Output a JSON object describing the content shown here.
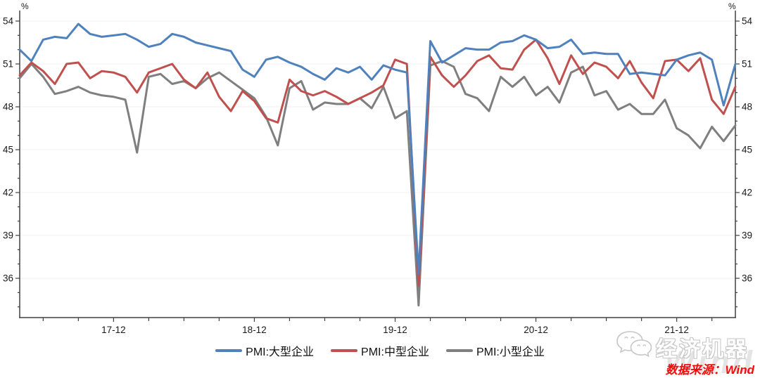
{
  "page": {
    "background": "#ffffff"
  },
  "chart_data": {
    "type": "line",
    "title": "",
    "y_unit": "%",
    "ylim": [
      33.25,
      54.75
    ],
    "yticks": [
      36,
      39,
      42,
      45,
      48,
      51,
      54
    ],
    "grid": "horizontal-faint",
    "legend_position": "bottom-center",
    "axis_color": "#404040",
    "grid_color": "#f0f0f0",
    "tick_label_color": "#1a1a1a",
    "x": [
      "17-04",
      "17-05",
      "17-06",
      "17-07",
      "17-08",
      "17-09",
      "17-10",
      "17-11",
      "17-12",
      "18-01",
      "18-02",
      "18-03",
      "18-04",
      "18-05",
      "18-06",
      "18-07",
      "18-08",
      "18-09",
      "18-10",
      "18-11",
      "18-12",
      "19-01",
      "19-02",
      "19-03",
      "19-04",
      "19-05",
      "19-06",
      "19-07",
      "19-08",
      "19-09",
      "19-10",
      "19-11",
      "19-12",
      "20-01",
      "20-02",
      "20-03",
      "20-04",
      "20-05",
      "20-06",
      "20-07",
      "20-08",
      "20-09",
      "20-10",
      "20-11",
      "20-12",
      "21-01",
      "21-02",
      "21-03",
      "21-04",
      "21-05",
      "21-06",
      "21-07",
      "21-08",
      "21-09",
      "21-10",
      "21-11",
      "21-12",
      "22-01",
      "22-02",
      "22-03",
      "22-04",
      "22-05"
    ],
    "xticks": [
      {
        "index": 8,
        "label": "17-12"
      },
      {
        "index": 20,
        "label": "18-12"
      },
      {
        "index": 32,
        "label": "19-12"
      },
      {
        "index": 44,
        "label": "20-12"
      },
      {
        "index": 56,
        "label": "21-12"
      }
    ],
    "minor_xtick_every_months": 3,
    "series": [
      {
        "name": "PMI:大型企业",
        "color": "#4f81bd",
        "values": [
          52.0,
          51.2,
          52.7,
          52.9,
          52.8,
          53.8,
          53.1,
          52.9,
          53.0,
          53.1,
          52.7,
          52.2,
          52.4,
          53.1,
          52.9,
          52.5,
          52.3,
          52.1,
          51.9,
          50.6,
          50.1,
          51.3,
          51.5,
          51.1,
          50.8,
          50.3,
          49.9,
          50.7,
          50.4,
          50.8,
          49.9,
          50.9,
          50.6,
          50.4,
          36.3,
          52.6,
          51.1,
          51.6,
          52.1,
          52.0,
          52.0,
          52.5,
          52.6,
          53.0,
          52.7,
          52.1,
          52.2,
          52.7,
          51.7,
          51.8,
          51.7,
          51.7,
          50.3,
          50.4,
          50.3,
          50.2,
          51.3,
          51.6,
          51.8,
          51.3,
          48.1,
          51.0
        ]
      },
      {
        "name": "PMI:中型企业",
        "color": "#c0504d",
        "values": [
          50.2,
          51.1,
          50.5,
          49.6,
          51.0,
          51.1,
          50.0,
          50.5,
          50.4,
          50.1,
          49.0,
          50.4,
          50.7,
          51.0,
          49.9,
          49.3,
          50.4,
          48.7,
          47.7,
          49.1,
          48.4,
          47.2,
          46.9,
          49.9,
          49.1,
          48.8,
          49.1,
          48.7,
          48.2,
          48.6,
          49.0,
          49.5,
          51.3,
          51.0,
          35.5,
          51.5,
          50.2,
          49.4,
          50.2,
          51.2,
          51.6,
          50.7,
          50.6,
          52.0,
          52.7,
          51.4,
          49.6,
          51.6,
          50.3,
          51.1,
          50.8,
          50.0,
          51.2,
          49.7,
          48.6,
          51.2,
          51.3,
          50.5,
          51.4,
          48.5,
          47.5,
          49.4
        ]
      },
      {
        "name": "PMI:小型企业",
        "color": "#7f7f7f",
        "values": [
          50.0,
          51.0,
          50.1,
          48.9,
          49.1,
          49.4,
          49.0,
          48.8,
          48.7,
          48.5,
          44.8,
          50.1,
          50.3,
          49.6,
          49.8,
          49.3,
          50.0,
          50.4,
          49.8,
          49.2,
          48.6,
          47.3,
          45.3,
          49.3,
          49.8,
          47.8,
          48.3,
          48.2,
          48.2,
          48.6,
          47.9,
          49.4,
          47.2,
          47.7,
          34.1,
          50.9,
          51.2,
          50.8,
          48.9,
          48.6,
          47.7,
          50.1,
          49.4,
          50.1,
          48.8,
          49.4,
          48.3,
          50.4,
          50.8,
          48.8,
          49.1,
          47.8,
          48.2,
          47.5,
          47.5,
          48.5,
          46.5,
          46.0,
          45.1,
          46.6,
          45.6,
          46.7
        ]
      }
    ]
  },
  "footer": {
    "source_label": "数据来源：Wind",
    "watermark_brand": "经济机器",
    "watermark_word": "Wind",
    "watermark_icon": "wechat-chat-bubbles"
  }
}
